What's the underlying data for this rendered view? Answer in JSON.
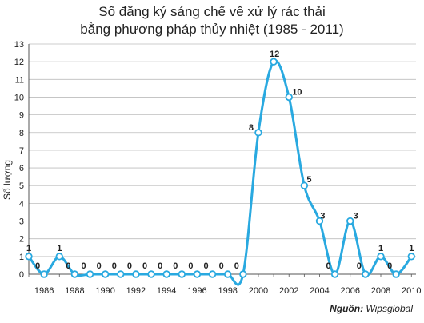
{
  "chart_data": {
    "type": "line",
    "title_line1": "Số đăng ký sáng chế về xử lý rác thải",
    "title_line2": "bằng phương pháp thủy nhiệt (1985 - 2011)",
    "ylabel": "Số lượng",
    "xlabel": "",
    "ylim": [
      0,
      13
    ],
    "yticks": [
      0,
      1,
      2,
      3,
      4,
      5,
      6,
      7,
      8,
      9,
      10,
      11,
      12,
      13
    ],
    "xlim": [
      1985,
      2010.3
    ],
    "xticks": [
      1986,
      1988,
      1990,
      1992,
      1994,
      1996,
      1998,
      2000,
      2002,
      2004,
      2006,
      2008,
      2010
    ],
    "grid": true,
    "line_color": "#29a9e0",
    "x": [
      1985,
      1986,
      1987,
      1988,
      1989,
      1990,
      1991,
      1992,
      1993,
      1994,
      1995,
      1996,
      1997,
      1998,
      1999,
      2000,
      2001,
      2002,
      2003,
      2004,
      2005,
      2006,
      2007,
      2008,
      2009,
      2010
    ],
    "values": [
      1,
      0,
      1,
      0,
      0,
      0,
      0,
      0,
      0,
      0,
      0,
      0,
      0,
      0,
      0,
      8,
      12,
      10,
      5,
      3,
      0,
      3,
      0,
      1,
      0,
      1
    ]
  },
  "source": {
    "label": "Nguồn:",
    "text": "Wipsglobal"
  }
}
